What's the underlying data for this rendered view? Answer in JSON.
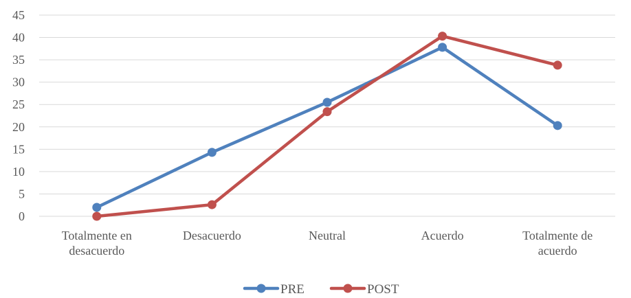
{
  "chart_data": {
    "type": "line",
    "categories": [
      [
        "Totalmente en",
        "desacuerdo"
      ],
      [
        "Desacuerdo"
      ],
      [
        "Neutral"
      ],
      [
        "Acuerdo"
      ],
      [
        "Totalmente de",
        "acuerdo"
      ]
    ],
    "series": [
      {
        "name": "PRE",
        "color": "#4f81bd",
        "values": [
          2,
          14.3,
          25.5,
          37.8,
          20.3
        ]
      },
      {
        "name": "POST",
        "color": "#c0504d",
        "values": [
          0,
          2.6,
          23.4,
          40.3,
          33.8
        ]
      }
    ],
    "yticks": [
      "0",
      "5",
      "10",
      "15",
      "20",
      "25",
      "30",
      "35",
      "40",
      "45"
    ],
    "ylim": [
      0,
      45
    ],
    "grid": true,
    "legend": "bottom"
  }
}
